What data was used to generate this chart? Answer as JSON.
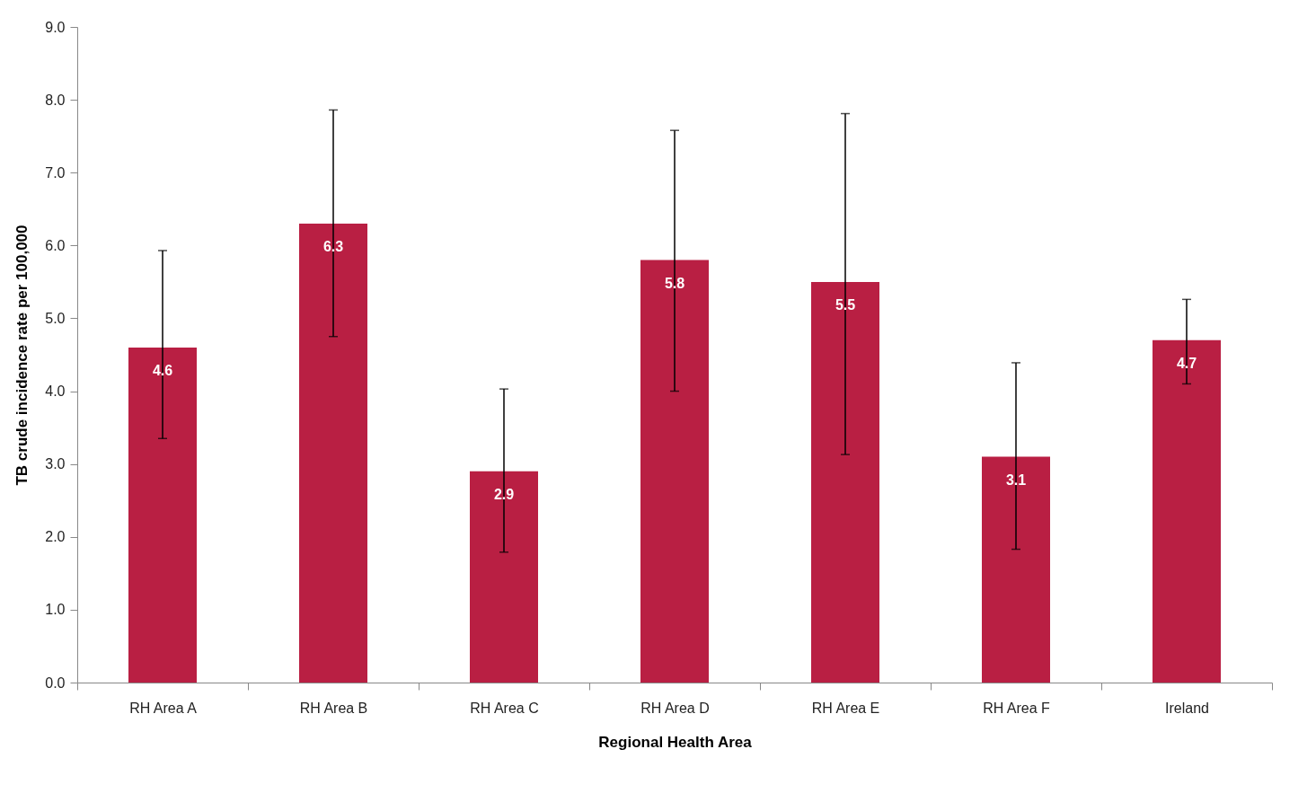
{
  "chart_data": {
    "type": "bar",
    "xlabel": "Regional Health Area",
    "ylabel": "TB crude incidence rate per 100,000",
    "categories": [
      "RH Area A",
      "RH Area B",
      "RH Area C",
      "RH Area D",
      "RH Area E",
      "RH Area F",
      "Ireland"
    ],
    "values": [
      4.6,
      6.3,
      2.9,
      5.8,
      5.5,
      3.1,
      4.7
    ],
    "errors": [
      [
        3.35,
        5.93
      ],
      [
        4.75,
        7.86
      ],
      [
        1.79,
        4.03
      ],
      [
        4.0,
        7.58
      ],
      [
        3.13,
        7.81
      ],
      [
        1.83,
        4.39
      ],
      [
        4.1,
        5.26
      ]
    ],
    "color": "#b91f43",
    "data_labels": true,
    "grid": false,
    "ylim": [
      0,
      9
    ],
    "yticks": [
      {
        "value": 0,
        "label": "0.0"
      },
      {
        "value": 1,
        "label": "1.0"
      },
      {
        "value": 2,
        "label": "2.0"
      },
      {
        "value": 3,
        "label": "3.0"
      },
      {
        "value": 4,
        "label": "4.0"
      },
      {
        "value": 5,
        "label": "5.0"
      },
      {
        "value": 6,
        "label": "6.0"
      },
      {
        "value": 7,
        "label": "7.0"
      },
      {
        "value": 8,
        "label": "8.0"
      },
      {
        "value": 9,
        "label": "9.0"
      }
    ]
  }
}
